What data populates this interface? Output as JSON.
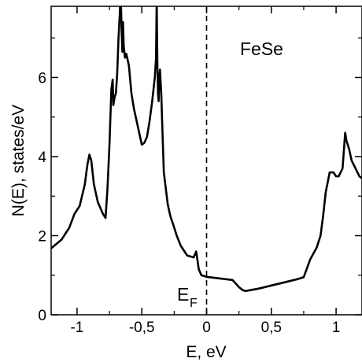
{
  "chart_data": {
    "type": "line",
    "title": "",
    "xlabel": "E, eV",
    "ylabel": "N(E), states/eV",
    "xlim": [
      -1.2,
      1.2
    ],
    "ylim": [
      0,
      7.8
    ],
    "grid": false,
    "x_ticks": [
      -1,
      -0.5,
      0,
      0.5,
      1
    ],
    "x_tick_labels": [
      "-1",
      "-0,5",
      "0",
      "0,5",
      "1"
    ],
    "y_ticks": [
      0,
      2,
      4,
      6
    ],
    "y_tick_labels": [
      "0",
      "2",
      "4",
      "6"
    ],
    "annotations": {
      "material": "FeSe",
      "fermi_main": "E",
      "fermi_sub": "F"
    },
    "fermi_level": 0,
    "series": [
      {
        "color": "#000000",
        "x": [
          -1.2,
          -1.12,
          -1.06,
          -1.02,
          -0.98,
          -0.94,
          -0.92,
          -0.905,
          -0.89,
          -0.87,
          -0.84,
          -0.8,
          -0.78,
          -0.765,
          -0.75,
          -0.735,
          -0.725,
          -0.72,
          -0.71,
          -0.7,
          -0.69,
          -0.68,
          -0.67,
          -0.665,
          -0.66,
          -0.655,
          -0.65,
          -0.645,
          -0.64,
          -0.63,
          -0.62,
          -0.6,
          -0.58,
          -0.56,
          -0.54,
          -0.52,
          -0.5,
          -0.48,
          -0.46,
          -0.44,
          -0.42,
          -0.4,
          -0.39,
          -0.385,
          -0.38,
          -0.375,
          -0.37,
          -0.365,
          -0.36,
          -0.35,
          -0.34,
          -0.33,
          -0.3,
          -0.28,
          -0.25,
          -0.23,
          -0.2,
          -0.15,
          -0.1,
          -0.08,
          -0.06,
          -0.04,
          -0.02,
          0,
          0.1,
          0.15,
          0.2,
          0.25,
          0.28,
          0.3,
          0.4,
          0.5,
          0.6,
          0.7,
          0.75,
          0.8,
          0.85,
          0.88,
          0.9,
          0.92,
          0.95,
          0.98,
          1.0,
          1.02,
          1.05,
          1.07,
          1.08,
          1.1,
          1.12,
          1.15,
          1.18,
          1.2
        ],
        "y": [
          1.68,
          1.9,
          2.2,
          2.55,
          2.75,
          3.3,
          3.8,
          4.05,
          3.9,
          3.3,
          2.85,
          2.55,
          2.45,
          3.2,
          4.3,
          5.7,
          5.95,
          5.3,
          5.5,
          5.6,
          6.1,
          7.0,
          7.6,
          8.1,
          7.7,
          7.1,
          6.65,
          7.4,
          6.8,
          6.5,
          6.6,
          6.3,
          5.6,
          5.2,
          4.9,
          4.6,
          4.3,
          4.35,
          4.5,
          4.9,
          5.4,
          6.0,
          6.5,
          8.0,
          6.3,
          5.6,
          5.4,
          6.0,
          6.2,
          5.6,
          4.6,
          3.6,
          2.8,
          2.5,
          2.2,
          2.0,
          1.75,
          1.5,
          1.45,
          1.6,
          1.15,
          1.0,
          0.98,
          0.96,
          0.92,
          0.9,
          0.88,
          0.7,
          0.62,
          0.6,
          0.66,
          0.74,
          0.82,
          0.9,
          0.95,
          1.4,
          1.7,
          2.0,
          2.5,
          3.1,
          3.6,
          3.6,
          3.5,
          3.5,
          3.7,
          4.6,
          4.4,
          4.2,
          3.9,
          3.7,
          3.5,
          3.45
        ]
      }
    ]
  }
}
